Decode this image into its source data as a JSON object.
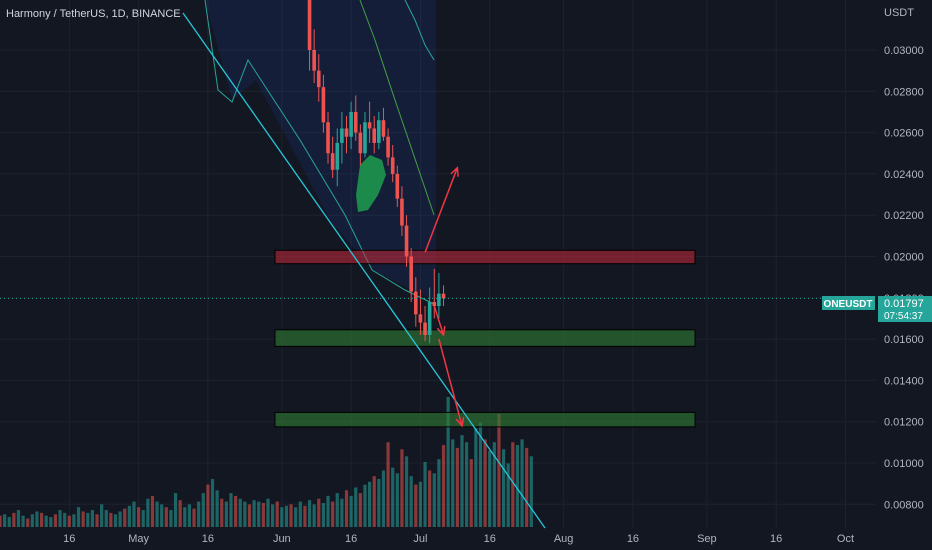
{
  "header": {
    "title": "Harmony / TetherUS, 1D, BINANCE"
  },
  "price_scale": {
    "currency": "USDT",
    "ticks": [
      "0.03000",
      "0.02800",
      "0.02600",
      "0.02400",
      "0.02200",
      "0.02000",
      "0.01800",
      "0.01600",
      "0.01400",
      "0.01200",
      "0.01000",
      "0.00800"
    ]
  },
  "badge": {
    "symbol": "ONEUSDT",
    "price": "0.01797",
    "countdown": "07:54:37"
  },
  "colors": {
    "background": "#131722",
    "up": "#26a69a",
    "down": "#ef5350",
    "trendline": "#26c6da",
    "resistance": "#c62838",
    "support": "#2e7d32",
    "arrow": "#f23645"
  },
  "chart_data": {
    "type": "candlestick",
    "title": "Harmony / TetherUS, 1D, BINANCE",
    "x_tick_labels": [
      "16",
      "May",
      "16",
      "Jun",
      "16",
      "Jul",
      "16",
      "Aug",
      "16",
      "Sep",
      "16",
      "Oct"
    ],
    "ylim": [
      0.0076,
      0.031
    ],
    "last_price": 0.01797,
    "zones": [
      {
        "kind": "resistance",
        "from": 0.01965,
        "to": 0.0203
      },
      {
        "kind": "support",
        "from": 0.01565,
        "to": 0.01645
      },
      {
        "kind": "support",
        "from": 0.01175,
        "to": 0.01245
      }
    ],
    "trendline": {
      "from": {
        "date": "2022-04-23",
        "price": 0.0311
      },
      "to": {
        "date": "2022-07-23",
        "price": 0.0074
      }
    },
    "projection_arrows": [
      {
        "from": {
          "date": "2022-07-02",
          "price": 0.0202
        },
        "to": {
          "date": "2022-07-09",
          "price": 0.0243
        }
      },
      {
        "from": {
          "date": "2022-07-04",
          "price": 0.0176
        },
        "to": {
          "date": "2022-07-06",
          "price": 0.0162
        }
      },
      {
        "from": {
          "date": "2022-07-05",
          "price": 0.016
        },
        "to": {
          "date": "2022-07-10",
          "price": 0.0118
        }
      }
    ],
    "candles": [
      {
        "date": "2022-06-07",
        "o": 0.033,
        "h": 0.0335,
        "l": 0.029,
        "c": 0.03
      },
      {
        "date": "2022-06-08",
        "o": 0.03,
        "h": 0.031,
        "l": 0.0284,
        "c": 0.029
      },
      {
        "date": "2022-06-09",
        "o": 0.029,
        "h": 0.0298,
        "l": 0.0275,
        "c": 0.0282
      },
      {
        "date": "2022-06-10",
        "o": 0.0282,
        "h": 0.0288,
        "l": 0.026,
        "c": 0.0265
      },
      {
        "date": "2022-06-11",
        "o": 0.0265,
        "h": 0.027,
        "l": 0.0245,
        "c": 0.025
      },
      {
        "date": "2022-06-12",
        "o": 0.025,
        "h": 0.0258,
        "l": 0.0238,
        "c": 0.0242
      },
      {
        "date": "2022-06-13",
        "o": 0.0242,
        "h": 0.0262,
        "l": 0.0234,
        "c": 0.0255
      },
      {
        "date": "2022-06-14",
        "o": 0.0255,
        "h": 0.027,
        "l": 0.0245,
        "c": 0.0262
      },
      {
        "date": "2022-06-15",
        "o": 0.0262,
        "h": 0.0268,
        "l": 0.025,
        "c": 0.0258
      },
      {
        "date": "2022-06-16",
        "o": 0.0258,
        "h": 0.0275,
        "l": 0.0252,
        "c": 0.027
      },
      {
        "date": "2022-06-17",
        "o": 0.027,
        "h": 0.0278,
        "l": 0.0256,
        "c": 0.026
      },
      {
        "date": "2022-06-18",
        "o": 0.026,
        "h": 0.0264,
        "l": 0.0244,
        "c": 0.025
      },
      {
        "date": "2022-06-19",
        "o": 0.025,
        "h": 0.027,
        "l": 0.0248,
        "c": 0.0265
      },
      {
        "date": "2022-06-20",
        "o": 0.0265,
        "h": 0.0275,
        "l": 0.0255,
        "c": 0.0262
      },
      {
        "date": "2022-06-21",
        "o": 0.0262,
        "h": 0.0268,
        "l": 0.025,
        "c": 0.0255
      },
      {
        "date": "2022-06-22",
        "o": 0.0255,
        "h": 0.027,
        "l": 0.0252,
        "c": 0.0266
      },
      {
        "date": "2022-06-23",
        "o": 0.0266,
        "h": 0.0272,
        "l": 0.0256,
        "c": 0.0258
      },
      {
        "date": "2022-06-24",
        "o": 0.0258,
        "h": 0.0262,
        "l": 0.0244,
        "c": 0.0248
      },
      {
        "date": "2022-06-25",
        "o": 0.0248,
        "h": 0.0254,
        "l": 0.0236,
        "c": 0.024
      },
      {
        "date": "2022-06-26",
        "o": 0.024,
        "h": 0.0244,
        "l": 0.0224,
        "c": 0.0228
      },
      {
        "date": "2022-06-27",
        "o": 0.0228,
        "h": 0.0234,
        "l": 0.021,
        "c": 0.0215
      },
      {
        "date": "2022-06-28",
        "o": 0.0215,
        "h": 0.022,
        "l": 0.0195,
        "c": 0.02
      },
      {
        "date": "2022-06-29",
        "o": 0.02,
        "h": 0.0204,
        "l": 0.0178,
        "c": 0.0183
      },
      {
        "date": "2022-06-30",
        "o": 0.0183,
        "h": 0.019,
        "l": 0.0166,
        "c": 0.0172
      },
      {
        "date": "2022-07-01",
        "o": 0.0172,
        "h": 0.0184,
        "l": 0.0162,
        "c": 0.0168
      },
      {
        "date": "2022-07-02",
        "o": 0.0168,
        "h": 0.0176,
        "l": 0.0159,
        "c": 0.0162
      },
      {
        "date": "2022-07-03",
        "o": 0.0162,
        "h": 0.0185,
        "l": 0.0158,
        "c": 0.0178
      },
      {
        "date": "2022-07-04",
        "o": 0.0178,
        "h": 0.0194,
        "l": 0.017,
        "c": 0.0176
      },
      {
        "date": "2022-07-05",
        "o": 0.0176,
        "h": 0.0192,
        "l": 0.017,
        "c": 0.0182
      },
      {
        "date": "2022-07-06",
        "o": 0.0182,
        "h": 0.0186,
        "l": 0.0176,
        "c": 0.01797
      }
    ],
    "volume": {
      "start_date": "2022-04-01",
      "values": [
        8,
        9,
        7,
        10,
        12,
        8,
        6,
        9,
        11,
        10,
        8,
        7,
        9,
        12,
        10,
        8,
        9,
        14,
        11,
        10,
        12,
        9,
        16,
        12,
        10,
        9,
        11,
        13,
        15,
        18,
        14,
        12,
        20,
        22,
        18,
        16,
        14,
        12,
        24,
        19,
        14,
        16,
        13,
        18,
        24,
        30,
        34,
        26,
        20,
        18,
        24,
        22,
        20,
        18,
        16,
        19,
        18,
        17,
        20,
        16,
        18,
        14,
        15,
        16,
        14,
        18,
        15,
        19,
        16,
        20,
        17,
        22,
        18,
        24,
        20,
        26,
        22,
        28,
        24,
        30,
        32,
        36,
        34,
        40,
        60,
        42,
        38,
        55,
        50,
        36,
        30,
        32,
        46,
        40,
        38,
        48,
        58,
        92,
        62,
        56,
        65,
        60,
        48,
        70,
        74,
        62,
        54,
        60,
        80,
        55,
        45,
        60,
        58,
        62,
        56,
        50
      ]
    }
  }
}
